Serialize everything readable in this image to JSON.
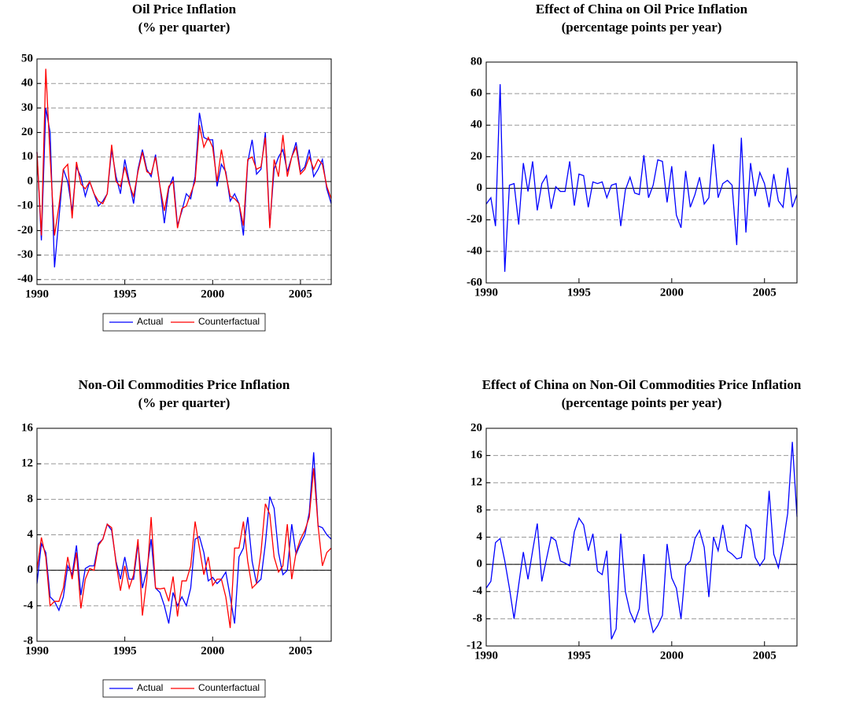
{
  "chart_data": [
    {
      "type": "line",
      "title": "Oil Price Inflation",
      "subtitle": "(% per quarter)",
      "x": [
        1990,
        1990.25,
        1990.5,
        1990.75,
        1991,
        1991.25,
        1991.5,
        1991.75,
        1992,
        1992.25,
        1992.5,
        1992.75,
        1993,
        1993.25,
        1993.5,
        1993.75,
        1994,
        1994.25,
        1994.5,
        1994.75,
        1995,
        1995.25,
        1995.5,
        1995.75,
        1996,
        1996.25,
        1996.5,
        1996.75,
        1997,
        1997.25,
        1997.5,
        1997.75,
        1998,
        1998.25,
        1998.5,
        1998.75,
        1999,
        1999.25,
        1999.5,
        1999.75,
        2000,
        2000.25,
        2000.5,
        2000.75,
        2001,
        2001.25,
        2001.5,
        2001.75,
        2002,
        2002.25,
        2002.5,
        2002.75,
        2003,
        2003.25,
        2003.5,
        2003.75,
        2004,
        2004.25,
        2004.5,
        2004.75,
        2005,
        2005.25,
        2005.5,
        2005.75,
        2006,
        2006.25,
        2006.5,
        2006.75
      ],
      "series": [
        {
          "name": "Actual",
          "color": "#0000ff",
          "values": [
            12,
            -24,
            30,
            20,
            -35,
            -15,
            5,
            0,
            -12,
            6,
            2,
            -6,
            0,
            -5,
            -10,
            -8,
            -5,
            13,
            2,
            -5,
            9,
            0,
            -9,
            5,
            13,
            5,
            2,
            11,
            -2,
            -17,
            -3,
            2,
            -18,
            -12,
            -5,
            -7,
            2,
            28,
            18,
            17,
            17,
            -2,
            7,
            4,
            -8,
            -5,
            -9,
            -22,
            8,
            17,
            3,
            5,
            20,
            -18,
            5,
            10,
            13,
            4,
            10,
            16,
            4,
            6,
            13,
            2,
            5,
            9,
            -3,
            -9
          ]
        },
        {
          "name": "Counterfactual",
          "color": "#ff0000",
          "values": [
            12,
            -22,
            46,
            10,
            -22,
            -10,
            5,
            7,
            -15,
            8,
            -1,
            -3,
            0,
            -5,
            -8,
            -9,
            -5,
            15,
            0,
            -2,
            6,
            -1,
            -6,
            4,
            12,
            4,
            3,
            10,
            -2,
            -12,
            -2,
            0,
            -19,
            -11,
            -10,
            -5,
            0,
            23,
            14,
            18,
            14,
            0,
            13,
            3,
            -6,
            -7,
            -9,
            -18,
            9,
            10,
            5,
            6,
            18,
            -19,
            9,
            2,
            19,
            2,
            10,
            14,
            3,
            5,
            10,
            5,
            9,
            7,
            -2,
            -7
          ]
        }
      ],
      "xlim": [
        1990,
        2006.75
      ],
      "ylim": [
        -42,
        50
      ],
      "xticks": [
        1990,
        1995,
        2000,
        2005
      ],
      "yticks": [
        -40,
        -30,
        -20,
        -10,
        0,
        10,
        20,
        30,
        40,
        50
      ],
      "grid": true,
      "legend": "bottom"
    },
    {
      "type": "line",
      "title": "Effect of China on Oil Price Inflation",
      "subtitle": "(percentage points per year)",
      "x": [
        1990,
        1990.25,
        1990.5,
        1990.75,
        1991,
        1991.25,
        1991.5,
        1991.75,
        1992,
        1992.25,
        1992.5,
        1992.75,
        1993,
        1993.25,
        1993.5,
        1993.75,
        1994,
        1994.25,
        1994.5,
        1994.75,
        1995,
        1995.25,
        1995.5,
        1995.75,
        1996,
        1996.25,
        1996.5,
        1996.75,
        1997,
        1997.25,
        1997.5,
        1997.75,
        1998,
        1998.25,
        1998.5,
        1998.75,
        1999,
        1999.25,
        1999.5,
        1999.75,
        2000,
        2000.25,
        2000.5,
        2000.75,
        2001,
        2001.25,
        2001.5,
        2001.75,
        2002,
        2002.25,
        2002.5,
        2002.75,
        2003,
        2003.25,
        2003.5,
        2003.75,
        2004,
        2004.25,
        2004.5,
        2004.75,
        2005,
        2005.25,
        2005.5,
        2005.75,
        2006,
        2006.25,
        2006.5,
        2006.75
      ],
      "values": [
        -10,
        -6,
        -24,
        66,
        -53,
        2,
        3,
        -23,
        16,
        -2,
        17,
        -14,
        3,
        8,
        -13,
        1,
        -2,
        -2,
        17,
        -11,
        9,
        8,
        -12,
        4,
        3,
        4,
        -6,
        2,
        3,
        -24,
        -1,
        7,
        -3,
        -4,
        21,
        -6,
        2,
        18,
        17,
        -9,
        14,
        -17,
        -25,
        11,
        -12,
        -4,
        7,
        -10,
        -6,
        28,
        -6,
        3,
        5,
        2,
        -36,
        32,
        -28,
        16,
        -5,
        10,
        3,
        -12,
        9,
        -8,
        -12,
        13,
        -12,
        -4
      ],
      "color": "#0000ff",
      "xlim": [
        1990,
        2006.75
      ],
      "ylim": [
        -60,
        80
      ],
      "xticks": [
        1990,
        1995,
        2000,
        2005
      ],
      "yticks": [
        -60,
        -40,
        -20,
        0,
        20,
        40,
        60,
        80
      ],
      "grid": true
    },
    {
      "type": "line",
      "title": "Non-Oil Commodities Price Inflation",
      "subtitle": "(% per quarter)",
      "x": [
        1990,
        1990.25,
        1990.5,
        1990.75,
        1991,
        1991.25,
        1991.5,
        1991.75,
        1992,
        1992.25,
        1992.5,
        1992.75,
        1993,
        1993.25,
        1993.5,
        1993.75,
        1994,
        1994.25,
        1994.5,
        1994.75,
        1995,
        1995.25,
        1995.5,
        1995.75,
        1996,
        1996.25,
        1996.5,
        1996.75,
        1997,
        1997.25,
        1997.5,
        1997.75,
        1998,
        1998.25,
        1998.5,
        1998.75,
        1999,
        1999.25,
        1999.5,
        1999.75,
        2000,
        2000.25,
        2000.5,
        2000.75,
        2001,
        2001.25,
        2001.5,
        2001.75,
        2002,
        2002.25,
        2002.5,
        2002.75,
        2003,
        2003.25,
        2003.5,
        2003.75,
        2004,
        2004.25,
        2004.5,
        2004.75,
        2005,
        2005.25,
        2005.5,
        2005.75,
        2006,
        2006.25,
        2006.5,
        2006.75
      ],
      "series": [
        {
          "name": "Actual",
          "color": "#0000ff",
          "values": [
            -1.5,
            3,
            2,
            -3,
            -3.5,
            -4.5,
            -3,
            0.5,
            -0.5,
            2.8,
            -2.8,
            0.2,
            0.5,
            0.5,
            3,
            3.5,
            5.2,
            4.5,
            1,
            -1,
            1.5,
            -1,
            -1,
            3,
            -2,
            0,
            3.5,
            -2,
            -2.5,
            -4,
            -6,
            -2.5,
            -4,
            -3,
            -4,
            -2,
            3.5,
            3.8,
            2,
            -1.2,
            -0.8,
            -1.5,
            -1,
            -0.2,
            -3,
            -6,
            1.5,
            2.5,
            6,
            1,
            -1.5,
            -1,
            3,
            8.3,
            7,
            2,
            -0.5,
            0,
            5.2,
            1.8,
            3,
            4,
            6.5,
            13.3,
            5,
            4.8,
            4,
            3.5
          ]
        },
        {
          "name": "Counterfactual",
          "color": "#ff0000",
          "values": [
            0,
            3.7,
            1.5,
            -4,
            -3.5,
            -3.5,
            -2,
            1.5,
            -1,
            2,
            -4.3,
            -1,
            0.2,
            0,
            2.8,
            3.5,
            5.2,
            4.8,
            0.8,
            -2.3,
            0.5,
            -2,
            -0.5,
            3.5,
            -5.1,
            -1,
            6,
            -2,
            -2.1,
            -2,
            -3.5,
            -0.7,
            -5.2,
            -1.2,
            -1.2,
            0.5,
            5.5,
            2.5,
            -0.5,
            1.5,
            -1.7,
            -1,
            -1,
            -3,
            -6.5,
            2.5,
            2.5,
            5.5,
            1,
            -2,
            -1.5,
            2,
            7.5,
            6.3,
            1.5,
            -0.2,
            0.5,
            5.2,
            -1,
            2,
            3.5,
            4.5,
            6,
            11.5,
            5,
            0.5,
            2,
            2.5
          ]
        }
      ],
      "xlim": [
        1990,
        2006.75
      ],
      "ylim": [
        -8,
        16
      ],
      "xticks": [
        1990,
        1995,
        2000,
        2005
      ],
      "yticks": [
        -8,
        -4,
        0,
        4,
        8,
        12,
        16
      ],
      "grid": true,
      "legend": "bottom"
    },
    {
      "type": "line",
      "title": "Effect of China on Non-Oil Commodities Price Inflation",
      "subtitle": "(percentage points per year)",
      "x": [
        1990,
        1990.25,
        1990.5,
        1990.75,
        1991,
        1991.25,
        1991.5,
        1991.75,
        1992,
        1992.25,
        1992.5,
        1992.75,
        1993,
        1993.25,
        1993.5,
        1993.75,
        1994,
        1994.25,
        1994.5,
        1994.75,
        1995,
        1995.25,
        1995.5,
        1995.75,
        1996,
        1996.25,
        1996.5,
        1996.75,
        1997,
        1997.25,
        1997.5,
        1997.75,
        1998,
        1998.25,
        1998.5,
        1998.75,
        1999,
        1999.25,
        1999.5,
        1999.75,
        2000,
        2000.25,
        2000.5,
        2000.75,
        2001,
        2001.25,
        2001.5,
        2001.75,
        2002,
        2002.25,
        2002.5,
        2002.75,
        2003,
        2003.25,
        2003.5,
        2003.75,
        2004,
        2004.25,
        2004.5,
        2004.75,
        2005,
        2005.25,
        2005.5,
        2005.75,
        2006,
        2006.25,
        2006.5,
        2006.75
      ],
      "values": [
        -3.5,
        -2.5,
        3.2,
        3.8,
        0.5,
        -3.5,
        -8,
        -3,
        1.8,
        -2.2,
        2,
        6,
        -2.5,
        0.8,
        4,
        3.5,
        0.5,
        0.2,
        -0.2,
        4.8,
        6.8,
        5.8,
        2,
        4.5,
        -1,
        -1.5,
        2,
        -11,
        -9.5,
        4.5,
        -4,
        -7,
        -8.5,
        -6.5,
        1.5,
        -7,
        -10,
        -9,
        -7.5,
        3,
        -2,
        -3.5,
        -8,
        -0.2,
        0.5,
        3.8,
        5,
        2.5,
        -4.8,
        4,
        2,
        5.8,
        2,
        1.5,
        0.8,
        1,
        5.8,
        5.2,
        1,
        -0.2,
        0.8,
        10.8,
        1.5,
        -0.5,
        3,
        7.5,
        18,
        7
      ],
      "color": "#0000ff",
      "xlim": [
        1990,
        2006.75
      ],
      "ylim": [
        -12,
        20
      ],
      "xticks": [
        1990,
        1995,
        2000,
        2005
      ],
      "yticks": [
        -12,
        -8,
        -4,
        0,
        4,
        8,
        12,
        16,
        20
      ],
      "grid": true
    }
  ]
}
